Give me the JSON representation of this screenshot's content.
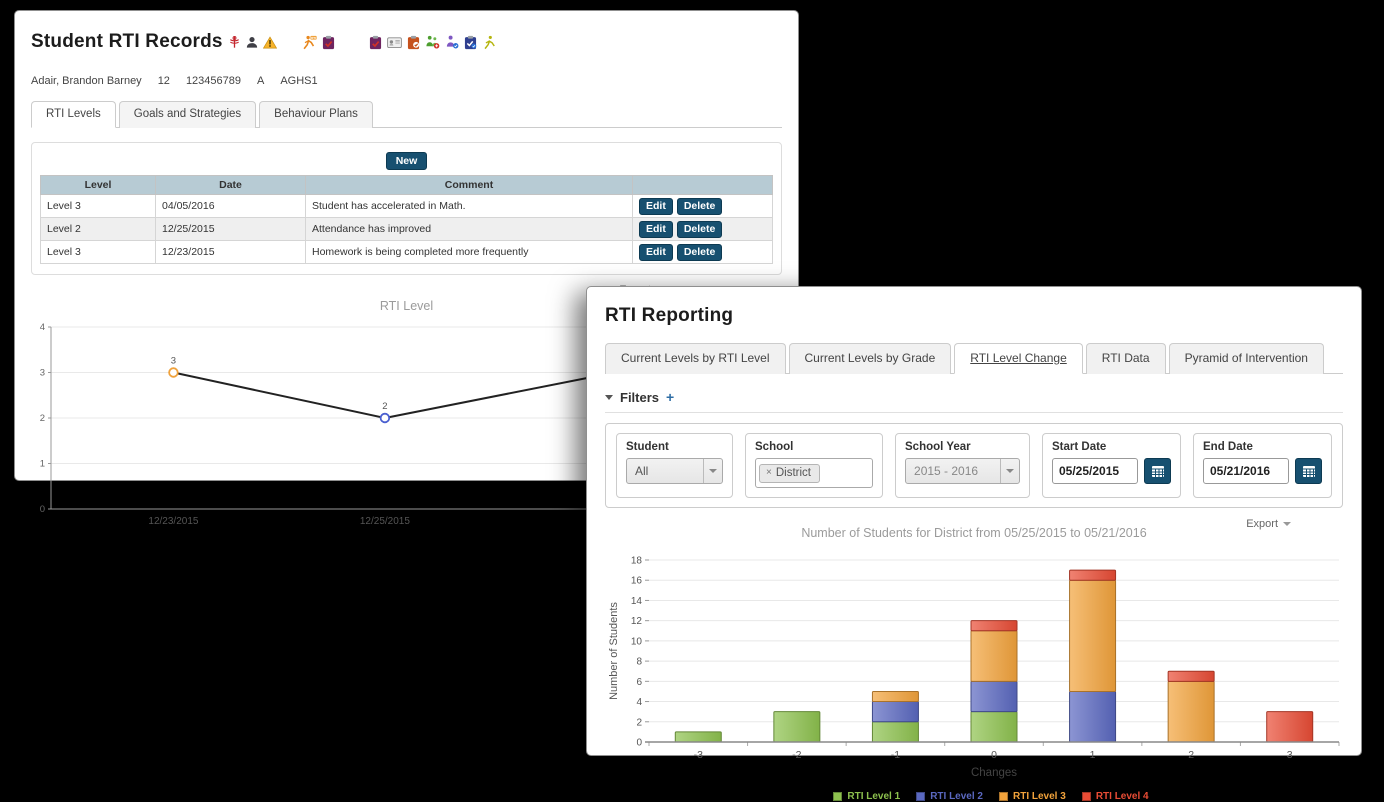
{
  "student_window": {
    "title": "Student RTI Records",
    "title_icons": [
      "medical-icon",
      "person-icon",
      "warning-icon"
    ],
    "toolbar_icons": [
      "rti-runner-icon",
      "clipboard-maroon-icon",
      "clipboard-red-icon",
      "id-card-icon",
      "clipboard-check-orange-icon",
      "people-green-badge-icon",
      "person-purple-badge-icon",
      "clipboard-check-blue-icon",
      "runner-yellow-icon"
    ],
    "student_info": {
      "name": "Adair, Brandon Barney",
      "grade": "12",
      "student_number": "123456789",
      "status": "A",
      "school_code": "AGHS1"
    },
    "tabs": [
      {
        "label": "RTI Levels",
        "active": true
      },
      {
        "label": "Goals and Strategies",
        "active": false
      },
      {
        "label": "Behaviour Plans",
        "active": false
      }
    ],
    "new_button_label": "New",
    "table": {
      "headers": [
        "Level",
        "Date",
        "Comment"
      ],
      "edit_label": "Edit",
      "delete_label": "Delete",
      "rows": [
        {
          "level": "Level 3",
          "date": "04/05/2016",
          "comment": "Student has accelerated in Math."
        },
        {
          "level": "Level 2",
          "date": "12/25/2015",
          "comment": "Attendance has improved"
        },
        {
          "level": "Level 3",
          "date": "12/23/2015",
          "comment": "Homework is being completed more frequently"
        }
      ]
    },
    "export_label": "Export"
  },
  "reporting_window": {
    "title": "RTI Reporting",
    "tabs": [
      {
        "label": "Current Levels by RTI Level",
        "active": false
      },
      {
        "label": "Current Levels by Grade",
        "active": false
      },
      {
        "label": "RTI Level Change",
        "active": true
      },
      {
        "label": "RTI Data",
        "active": false
      },
      {
        "label": "Pyramid of Intervention",
        "active": false
      }
    ],
    "filters": {
      "header": "Filters",
      "expand_symbol": "+",
      "student": {
        "label": "Student",
        "value": "All"
      },
      "school": {
        "label": "School",
        "chip": "District"
      },
      "school_year": {
        "label": "School Year",
        "value": "2015 - 2016"
      },
      "start_date": {
        "label": "Start Date",
        "value": "05/25/2015"
      },
      "end_date": {
        "label": "End Date",
        "value": "05/21/2016"
      }
    },
    "export_label": "Export"
  },
  "chart_data": [
    {
      "id": "rti-level-line",
      "type": "line",
      "title": "RTI Level",
      "ylim": [
        0,
        4
      ],
      "yticks": [
        0,
        1,
        2,
        3,
        4
      ],
      "grid": true,
      "line_color": "#222222",
      "points": [
        {
          "x_label": "12/23/2015",
          "y": 3,
          "data_label": "3",
          "marker_color": "#f0a23c"
        },
        {
          "x_label": "12/25/2015",
          "y": 2,
          "data_label": "2",
          "marker_color": "#4a5fd0"
        },
        {
          "x_label": "",
          "y": 3,
          "data_label": "",
          "marker_color": "#f0a23c"
        }
      ]
    },
    {
      "id": "level-change-bar",
      "type": "bar",
      "stacked": true,
      "title": "Number of Students for District from 05/25/2015 to 05/21/2016",
      "xlabel": "Changes",
      "ylabel": "Number of Students",
      "categories": [
        "-3",
        "-2",
        "-1",
        "0",
        "1",
        "2",
        "3"
      ],
      "series": [
        {
          "name": "RTI Level 1",
          "color": "#8dc14e",
          "values": [
            1,
            3,
            2,
            3,
            0,
            0,
            0
          ]
        },
        {
          "name": "RTI Level 2",
          "color": "#5a68c0",
          "values": [
            0,
            0,
            2,
            3,
            5,
            0,
            0
          ]
        },
        {
          "name": "RTI Level 3",
          "color": "#f2a33c",
          "values": [
            0,
            0,
            1,
            5,
            11,
            6,
            0
          ]
        },
        {
          "name": "RTI Level 4",
          "color": "#e94c35",
          "values": [
            0,
            0,
            0,
            1,
            1,
            1,
            3
          ]
        }
      ],
      "ylim": [
        0,
        18
      ],
      "ytick_step": 2,
      "grid": true,
      "legend_position": "bottom"
    }
  ]
}
